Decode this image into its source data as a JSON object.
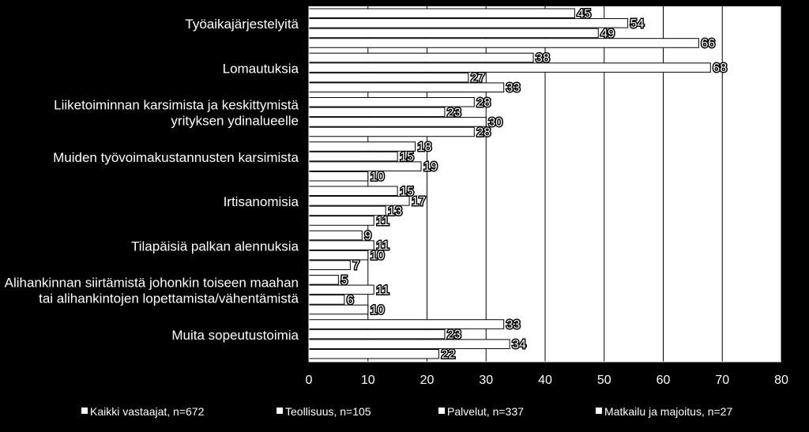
{
  "chart_data": {
    "type": "bar",
    "orientation": "horizontal",
    "categories": [
      [
        "Työaikajärjestelyitä"
      ],
      [
        "Lomautuksia"
      ],
      [
        "Liiketoiminnan karsimista ja keskittymistä",
        "yrityksen ydinalueelle"
      ],
      [
        "Muiden työvoimakustannusten karsimista"
      ],
      [
        "Irtisanomisia"
      ],
      [
        "Tilapäisiä palkan alennuksia"
      ],
      [
        "Alihankinnan siirtämistä johonkin toiseen maahan",
        "tai alihankintojen lopettamista/vähentämistä"
      ],
      [
        "Muita sopeutustoimia"
      ]
    ],
    "series": [
      {
        "name": "Kaikki vastaajat, n=672",
        "values": [
          45,
          38,
          28,
          18,
          15,
          9,
          5,
          33
        ]
      },
      {
        "name": "Teollisuus, n=105",
        "values": [
          54,
          68,
          23,
          15,
          17,
          11,
          11,
          23
        ]
      },
      {
        "name": "Palvelut, n=337",
        "values": [
          49,
          27,
          30,
          19,
          13,
          10,
          6,
          34
        ]
      },
      {
        "name": "Matkailu ja majoitus, n=27",
        "values": [
          66,
          33,
          28,
          10,
          11,
          7,
          10,
          22
        ]
      }
    ],
    "xlim": [
      0,
      80
    ],
    "xticks": [
      0,
      10,
      20,
      30,
      40,
      50,
      60,
      70,
      80
    ],
    "grid": true,
    "legend_position": "bottom",
    "title": "",
    "xlabel": "",
    "ylabel": ""
  },
  "colors": {
    "background": "#000000",
    "bar": "#ffffff",
    "bar_border": "#000000",
    "grid": "#000000",
    "plot_background": "#ffffff",
    "text": "#ffffff"
  }
}
